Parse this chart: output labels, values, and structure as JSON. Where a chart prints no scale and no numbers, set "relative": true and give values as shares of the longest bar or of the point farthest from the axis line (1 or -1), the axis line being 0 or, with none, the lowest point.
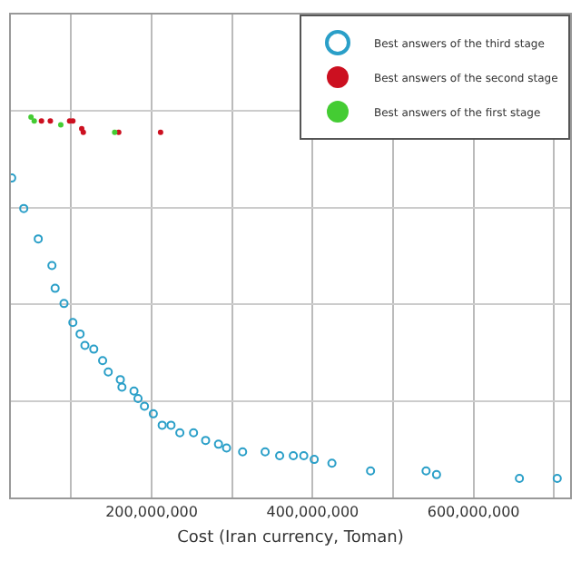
{
  "chart_data": {
    "type": "scatter",
    "xlabel": "Cost (Iran currency, Toman)",
    "relative": true,
    "grid": true,
    "legend": "top right",
    "marker": "circle",
    "xlim": [
      25000000,
      720000000
    ],
    "xticks": [
      {
        "value": 100000000,
        "label": null
      },
      {
        "value": 200000000,
        "label": "200,000,000"
      },
      {
        "value": 300000000,
        "label": null
      },
      {
        "value": 400000000,
        "label": "400,000,000"
      },
      {
        "value": 500000000,
        "label": null
      },
      {
        "value": 600000000,
        "label": "600,000,000"
      },
      {
        "value": 700000000,
        "label": null
      }
    ],
    "series": [
      {
        "name": "Best answers of the third stage",
        "color": "#2a9fc8",
        "x": [
          26000000,
          41000000,
          59000000,
          76000000,
          80000000,
          91000000,
          102000000,
          111000000,
          117000000,
          128000000,
          139000000,
          146000000,
          161000000,
          163000000,
          178000000,
          183000000,
          191000000,
          202000000,
          213000000,
          224000000,
          235000000,
          252000000,
          267000000,
          283000000,
          293000000,
          313000000,
          341000000,
          359000000,
          376000000,
          389000000,
          402000000,
          424000000,
          472000000,
          541000000,
          554000000,
          657000000,
          704000000
        ],
        "values": [
          0.84,
          0.76,
          0.68,
          0.61,
          0.55,
          0.51,
          0.46,
          0.43,
          0.4,
          0.39,
          0.36,
          0.33,
          0.31,
          0.29,
          0.28,
          0.26,
          0.24,
          0.22,
          0.19,
          0.19,
          0.17,
          0.17,
          0.15,
          0.14,
          0.13,
          0.12,
          0.12,
          0.11,
          0.11,
          0.11,
          0.1,
          0.09,
          0.07,
          0.07,
          0.06,
          0.05,
          0.05
        ]
      },
      {
        "name": "Best answers of the second stage",
        "color": "#cc1020",
        "x": [
          63000000,
          74000000,
          98000000,
          102000000,
          113000000,
          115000000,
          159000000,
          211000000
        ],
        "values": [
          0.99,
          0.99,
          0.99,
          0.99,
          0.97,
          0.96,
          0.96,
          0.96
        ]
      },
      {
        "name": "Best answers of the first stage",
        "color": "#44cc33",
        "x": [
          50000000,
          54000000,
          87000000,
          154000000
        ],
        "values": [
          1.0,
          0.99,
          0.98,
          0.96
        ]
      }
    ]
  }
}
